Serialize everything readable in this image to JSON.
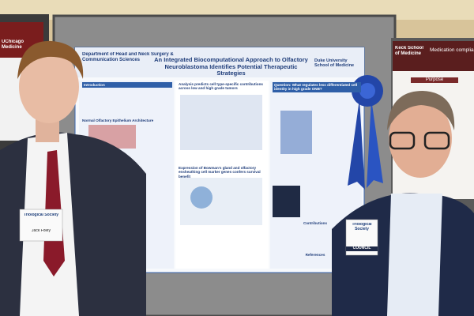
{
  "posters": {
    "center": {
      "department": "Department of Head and Neck Surgery & Communication Sciences",
      "title": "An Integrated Biocomputational Approach to Olfactory Neuroblastoma Identifies Potential Therapeutic Strategies",
      "logo": "Duke University School of Medicine",
      "sections": [
        "Introduction",
        "Normal Olfactory Epithelium Architecture",
        "Analysis predicts cell type-specific contributions across low and high grade tumors",
        "Expression of Bowman's gland and olfactory ensheathing cell marker genes confers survival benefit",
        "Question: What regulates less differentiated cell identity in high grade ONB?",
        "Contributions",
        "References"
      ]
    },
    "left": {
      "logo": "UChicago Medicine"
    },
    "right": {
      "logo": "Keck School of Medicine",
      "heading": "Medication complia",
      "section": "Purpose"
    }
  },
  "badges": [
    {
      "org": "Triological Society",
      "name": "Jack Foley"
    },
    {
      "org": "Triological Society",
      "role": "COUNCIL"
    }
  ]
}
